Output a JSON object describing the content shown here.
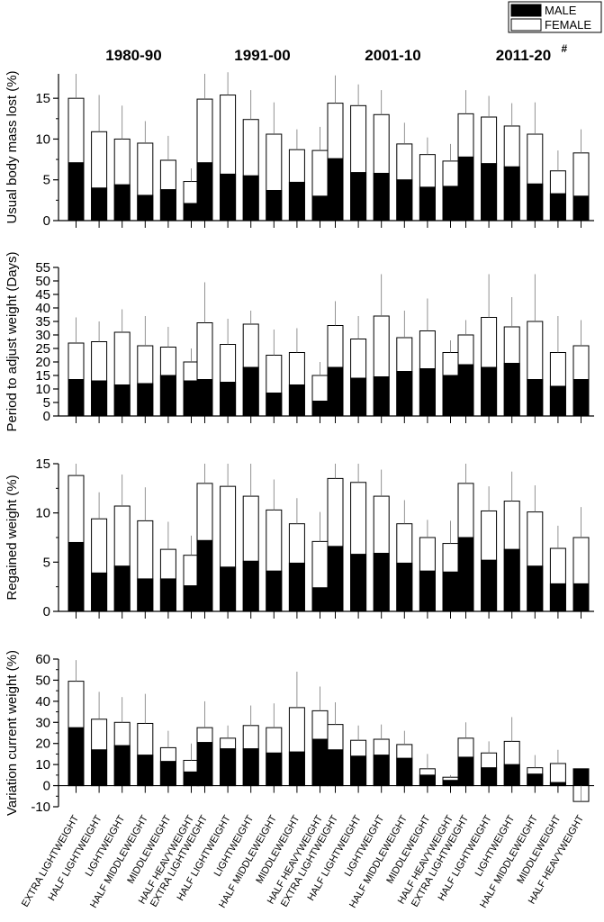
{
  "chart_data": {
    "type": "bar",
    "stacked": true,
    "legend": {
      "position": "top-right",
      "entries": [
        {
          "name": "MALE",
          "color": "#000000"
        },
        {
          "name": "FEMALE",
          "color": "#ffffff"
        }
      ]
    },
    "decades": [
      "1980-90",
      "1991-00",
      "2001-10",
      "2011-20"
    ],
    "decade_marks": [
      "",
      "",
      "",
      "#"
    ],
    "categories": [
      "EXTRA LIGHTWEIGHT",
      "HALF LIGHTWEIGHT",
      "LIGHTWEIGHT",
      "HALF MIDDLEWEIGHT",
      "MIDDLEWEIGHT",
      "HALF HEAVYWEIGHT"
    ],
    "panels": [
      {
        "ylabel": "Usual body mass lost (%)",
        "ylim": [
          0,
          18
        ],
        "yticks": [
          0,
          5,
          10,
          15
        ],
        "male": [
          [
            7.1,
            4.0,
            4.4,
            3.1,
            3.8,
            2.1
          ],
          [
            7.1,
            5.7,
            5.5,
            3.7,
            4.7,
            3.0
          ],
          [
            7.6,
            5.9,
            5.8,
            5.0,
            4.1,
            4.2
          ],
          [
            7.8,
            7.0,
            6.6,
            4.5,
            3.3,
            3.0
          ]
        ],
        "total": [
          [
            15.0,
            10.9,
            10.0,
            9.5,
            7.4,
            4.8
          ],
          [
            14.9,
            15.4,
            12.4,
            10.6,
            8.7,
            8.6
          ],
          [
            14.4,
            14.1,
            13.0,
            9.4,
            8.1,
            7.3
          ],
          [
            13.1,
            12.7,
            11.6,
            10.6,
            6.1,
            8.3
          ]
        ],
        "error_top": [
          [
            18.0,
            15.4,
            14.1,
            12.2,
            10.4,
            6.4
          ],
          [
            18.0,
            18.2,
            16.0,
            14.5,
            11.2,
            11.5
          ],
          [
            17.8,
            16.7,
            16.0,
            12.0,
            10.2,
            9.4
          ],
          [
            16.0,
            15.3,
            14.4,
            14.5,
            8.6,
            11.2
          ]
        ]
      },
      {
        "ylabel": "Period to adjust weight (Days)",
        "ylim": [
          0,
          55
        ],
        "yticks": [
          0,
          5,
          10,
          15,
          20,
          25,
          30,
          35,
          40,
          45,
          50,
          55
        ],
        "male": [
          [
            13.5,
            13.0,
            11.5,
            12.0,
            15.0,
            13.0
          ],
          [
            13.5,
            12.5,
            18.0,
            8.5,
            11.5,
            5.5
          ],
          [
            18.0,
            14.0,
            14.5,
            16.5,
            17.5,
            15.0
          ],
          [
            19.0,
            18.0,
            19.5,
            13.5,
            11.0,
            13.5
          ]
        ],
        "total": [
          [
            27.0,
            27.5,
            31.0,
            26.0,
            25.5,
            20.0
          ],
          [
            34.5,
            26.5,
            34.0,
            22.5,
            23.5,
            15.0
          ],
          [
            33.5,
            28.5,
            37.0,
            29.0,
            31.5,
            23.5
          ],
          [
            30.0,
            36.5,
            33.0,
            35.0,
            23.5,
            26.0
          ]
        ],
        "error_top": [
          [
            36.5,
            35.0,
            39.5,
            37.0,
            33.0,
            25.0
          ],
          [
            49.5,
            36.0,
            39.0,
            32.0,
            32.5,
            20.0
          ],
          [
            42.5,
            37.0,
            52.5,
            39.0,
            43.5,
            28.0
          ],
          [
            35.5,
            52.5,
            44.0,
            52.5,
            37.0,
            35.5
          ]
        ]
      },
      {
        "ylabel": "Regained weight (%)",
        "ylim": [
          0,
          15
        ],
        "yticks": [
          0,
          5,
          10,
          15
        ],
        "male": [
          [
            7.0,
            3.9,
            4.6,
            3.3,
            3.3,
            2.6
          ],
          [
            7.2,
            4.5,
            5.1,
            4.1,
            4.9,
            2.4
          ],
          [
            6.6,
            5.8,
            5.9,
            4.9,
            4.1,
            4.0
          ],
          [
            7.5,
            5.2,
            6.3,
            4.6,
            2.8,
            2.8
          ]
        ],
        "total": [
          [
            13.8,
            9.4,
            10.7,
            9.2,
            6.3,
            5.7
          ],
          [
            13.0,
            12.7,
            11.7,
            10.3,
            8.9,
            7.1
          ],
          [
            13.5,
            13.1,
            11.7,
            8.9,
            7.5,
            6.9
          ],
          [
            13.0,
            10.2,
            11.2,
            10.1,
            6.4,
            7.5
          ]
        ],
        "error_top": [
          [
            15.0,
            12.1,
            13.9,
            12.6,
            9.1,
            7.7
          ],
          [
            15.0,
            15.0,
            15.0,
            13.4,
            11.5,
            10.1
          ],
          [
            15.0,
            15.0,
            14.4,
            11.3,
            9.3,
            9.2
          ],
          [
            15.0,
            12.7,
            14.2,
            12.8,
            8.7,
            10.6
          ]
        ]
      },
      {
        "ylabel": "Variation current weight (%)",
        "ylim": [
          -10,
          60
        ],
        "yticks": [
          -10,
          0,
          10,
          20,
          30,
          40,
          50,
          60
        ],
        "male": [
          [
            27.5,
            17.0,
            19.0,
            14.5,
            11.5,
            6.5
          ],
          [
            20.5,
            17.5,
            17.5,
            15.5,
            16.0,
            22.0
          ],
          [
            17.0,
            14.0,
            14.5,
            13.0,
            5.0,
            2.5
          ],
          [
            13.5,
            8.5,
            10.0,
            5.5,
            1.5,
            8.0
          ]
        ],
        "total": [
          [
            49.5,
            31.5,
            30.0,
            29.5,
            18.0,
            12.0
          ],
          [
            27.5,
            22.5,
            28.5,
            27.5,
            37.0,
            35.5
          ],
          [
            29.0,
            21.5,
            22.0,
            19.5,
            8.0,
            4.0
          ],
          [
            22.5,
            15.5,
            21.0,
            8.5,
            10.5,
            -7.5
          ]
        ],
        "error_top": [
          [
            59.5,
            44.5,
            42.0,
            43.5,
            26.0,
            20.0
          ],
          [
            40.0,
            28.5,
            38.0,
            39.0,
            54.0,
            47.0
          ],
          [
            39.5,
            28.5,
            29.0,
            26.0,
            15.0,
            5.0
          ],
          [
            30.0,
            21.0,
            32.5,
            14.5,
            17.0,
            0
          ]
        ]
      }
    ]
  }
}
